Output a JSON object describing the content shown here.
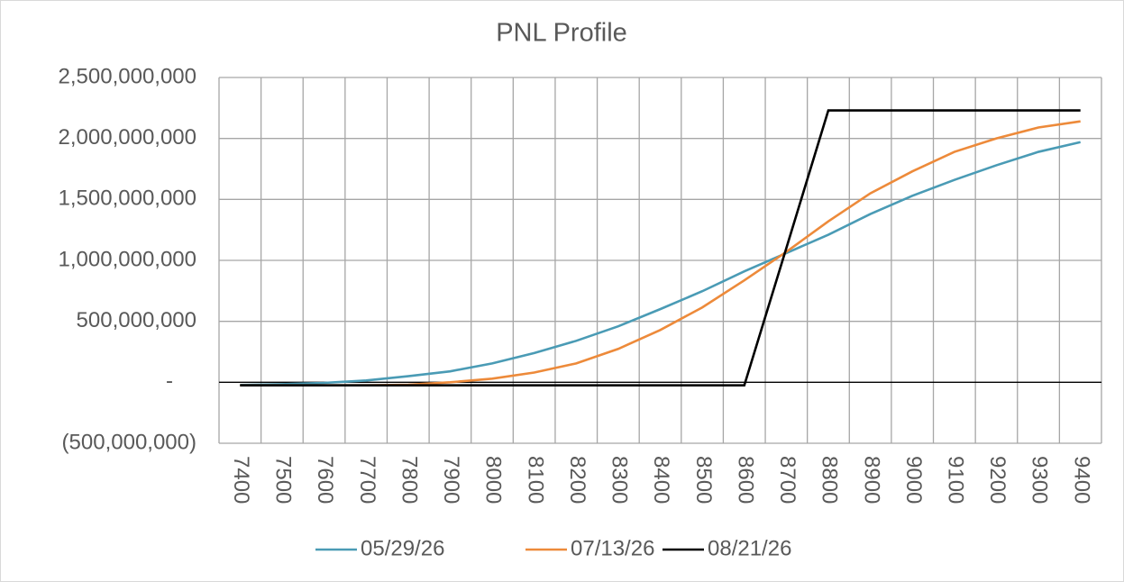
{
  "chart_data": {
    "type": "line",
    "title": "PNL Profile",
    "categories": [
      "7400",
      "7500",
      "7600",
      "7700",
      "7800",
      "7900",
      "8000",
      "8100",
      "8200",
      "8300",
      "8400",
      "8500",
      "8600",
      "8700",
      "8800",
      "8900",
      "9000",
      "9100",
      "9200",
      "9300",
      "9400"
    ],
    "series": [
      {
        "name": "05/29/26",
        "color": "#4a9bb5",
        "values": [
          -22000000,
          -15000000,
          -5000000,
          15000000,
          50000000,
          90000000,
          155000000,
          240000000,
          340000000,
          459000000,
          600000000,
          747000000,
          910000000,
          1060000000,
          1210000000,
          1380000000,
          1530000000,
          1660000000,
          1780000000,
          1890000000,
          1970000000
        ]
      },
      {
        "name": "07/13/26",
        "color": "#ed8a3a",
        "values": [
          -25000000,
          -25000000,
          -25000000,
          -25000000,
          -20000000,
          0,
          30000000,
          80000000,
          155000000,
          274000000,
          429000000,
          614000000,
          836000000,
          1070000000,
          1320000000,
          1550000000,
          1730000000,
          1890000000,
          2000000000,
          2090000000,
          2140000000
        ]
      },
      {
        "name": "08/21/26",
        "color": "#000000",
        "values": [
          -25000000,
          -25000000,
          -25000000,
          -25000000,
          -25000000,
          -25000000,
          -25000000,
          -25000000,
          -25000000,
          -25000000,
          -25000000,
          -25000000,
          -25000000,
          1100000000,
          2230000000,
          2230000000,
          2230000000,
          2230000000,
          2230000000,
          2230000000,
          2230000000
        ]
      }
    ],
    "ylim": [
      -500000000,
      2500000000
    ],
    "yticks": [
      {
        "value": -500000000,
        "label": "(500,000,000)"
      },
      {
        "value": 0,
        "label": "-"
      },
      {
        "value": 500000000,
        "label": "500,000,000"
      },
      {
        "value": 1000000000,
        "label": "1,000,000,000"
      },
      {
        "value": 1500000000,
        "label": "1,500,000,000"
      },
      {
        "value": 2000000000,
        "label": "2,000,000,000"
      },
      {
        "value": 2500000000,
        "label": "2,500,000,000"
      }
    ],
    "grid": true,
    "legend": "bottom"
  }
}
